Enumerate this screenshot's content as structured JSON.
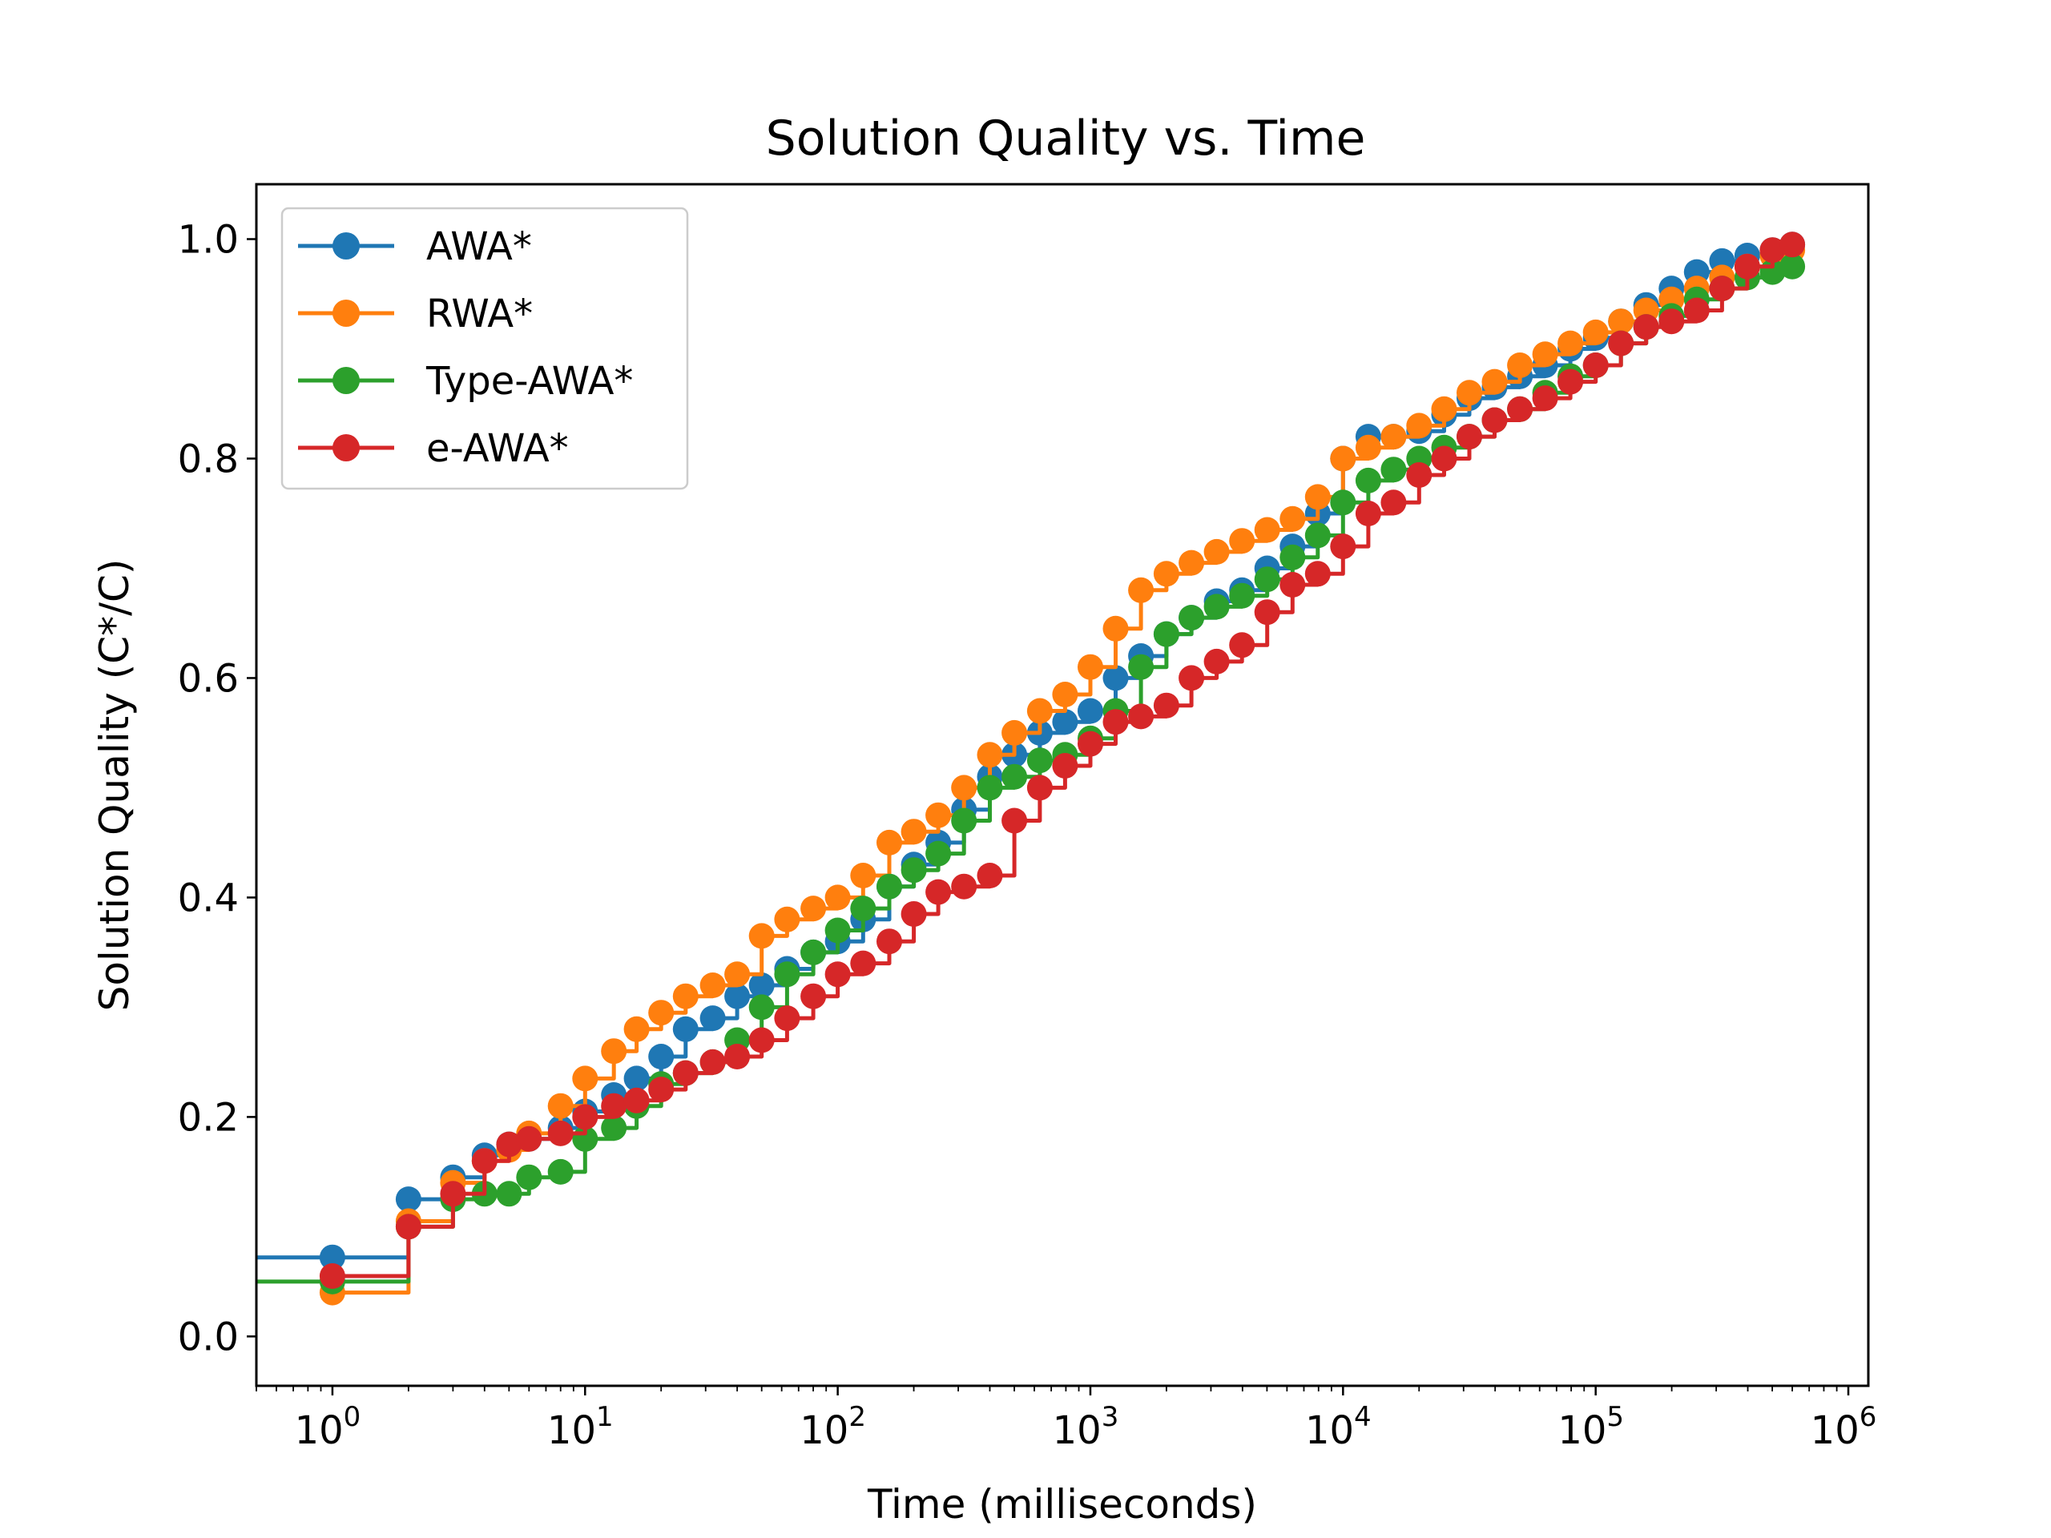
{
  "chart_data": {
    "type": "line",
    "title": "Solution Quality vs. Time",
    "xlabel": "Time (milliseconds)",
    "ylabel": "Solution Quality (C*/C)",
    "x_scale": "log",
    "xlim": [
      0.5,
      1200000
    ],
    "ylim": [
      -0.045,
      1.05
    ],
    "xticks": [
      {
        "value": 1,
        "base": "10",
        "exp": "0"
      },
      {
        "value": 10,
        "base": "10",
        "exp": "1"
      },
      {
        "value": 100,
        "base": "10",
        "exp": "2"
      },
      {
        "value": 1000,
        "base": "10",
        "exp": "3"
      },
      {
        "value": 10000,
        "base": "10",
        "exp": "4"
      },
      {
        "value": 100000,
        "base": "10",
        "exp": "5"
      },
      {
        "value": 1000000,
        "base": "10",
        "exp": "6"
      }
    ],
    "yticks": [
      {
        "value": 0.0,
        "label": "0.0"
      },
      {
        "value": 0.2,
        "label": "0.2"
      },
      {
        "value": 0.4,
        "label": "0.4"
      },
      {
        "value": 0.6,
        "label": "0.6"
      },
      {
        "value": 0.8,
        "label": "0.8"
      },
      {
        "value": 1.0,
        "label": "1.0"
      }
    ],
    "grid": false,
    "legend_position": "upper-left",
    "series": [
      {
        "name": "AWA*",
        "color": "#1f77b4",
        "x": [
          0.5,
          1,
          2,
          3,
          4,
          5,
          6,
          8,
          10,
          13,
          16,
          20,
          25,
          32,
          40,
          50,
          63,
          80,
          100,
          126,
          160,
          200,
          250,
          316,
          400,
          500,
          631,
          794,
          1000,
          1259,
          1585,
          2000,
          2512,
          3162,
          3981,
          5012,
          6310,
          7943,
          10000,
          12589,
          15849,
          20000,
          25119,
          31623,
          39811,
          50119,
          63096,
          79433,
          100000,
          125893,
          158489,
          199526,
          251189,
          316228,
          398107,
          501187,
          600000
        ],
        "y": [
          0.072,
          0.072,
          0.125,
          0.145,
          0.165,
          0.175,
          0.18,
          0.19,
          0.205,
          0.22,
          0.235,
          0.255,
          0.28,
          0.29,
          0.31,
          0.32,
          0.335,
          0.35,
          0.36,
          0.38,
          0.41,
          0.43,
          0.45,
          0.48,
          0.51,
          0.53,
          0.55,
          0.56,
          0.57,
          0.6,
          0.62,
          0.64,
          0.655,
          0.67,
          0.68,
          0.7,
          0.72,
          0.75,
          0.8,
          0.82,
          0.82,
          0.825,
          0.84,
          0.855,
          0.865,
          0.875,
          0.885,
          0.9,
          0.91,
          0.925,
          0.94,
          0.955,
          0.97,
          0.98,
          0.985,
          0.99,
          0.995
        ]
      },
      {
        "name": "RWA*",
        "color": "#ff7f0e",
        "x": [
          1,
          2,
          3,
          4,
          5,
          6,
          8,
          10,
          13,
          16,
          20,
          25,
          32,
          40,
          50,
          63,
          80,
          100,
          126,
          160,
          200,
          250,
          316,
          400,
          500,
          631,
          794,
          1000,
          1259,
          1585,
          2000,
          2512,
          3162,
          3981,
          5012,
          6310,
          7943,
          10000,
          12589,
          15849,
          20000,
          25119,
          31623,
          39811,
          50119,
          63096,
          79433,
          100000,
          125893,
          158489,
          199526,
          251189,
          316228,
          398107,
          501187,
          600000
        ],
        "y": [
          0.04,
          0.105,
          0.14,
          0.16,
          0.17,
          0.185,
          0.21,
          0.235,
          0.26,
          0.28,
          0.295,
          0.31,
          0.32,
          0.33,
          0.365,
          0.38,
          0.39,
          0.4,
          0.42,
          0.45,
          0.46,
          0.475,
          0.5,
          0.53,
          0.55,
          0.57,
          0.585,
          0.61,
          0.645,
          0.68,
          0.695,
          0.705,
          0.715,
          0.725,
          0.735,
          0.745,
          0.765,
          0.8,
          0.81,
          0.82,
          0.83,
          0.845,
          0.86,
          0.87,
          0.885,
          0.895,
          0.905,
          0.915,
          0.925,
          0.935,
          0.945,
          0.955,
          0.965,
          0.975,
          0.985,
          0.99
        ]
      },
      {
        "name": "Type-AWA*",
        "color": "#2ca02c",
        "x": [
          0.5,
          1,
          2,
          3,
          4,
          5,
          6,
          8,
          10,
          13,
          16,
          20,
          25,
          32,
          40,
          50,
          63,
          80,
          100,
          126,
          160,
          200,
          250,
          316,
          400,
          500,
          631,
          794,
          1000,
          1259,
          1585,
          2000,
          2512,
          3162,
          3981,
          5012,
          6310,
          7943,
          10000,
          12589,
          15849,
          20000,
          25119,
          31623,
          39811,
          50119,
          63096,
          79433,
          100000,
          125893,
          158489,
          199526,
          251189,
          316228,
          398107,
          501187,
          600000
        ],
        "y": [
          0.05,
          0.05,
          0.1,
          0.125,
          0.13,
          0.13,
          0.145,
          0.15,
          0.18,
          0.19,
          0.21,
          0.23,
          0.24,
          0.25,
          0.27,
          0.3,
          0.33,
          0.35,
          0.37,
          0.39,
          0.41,
          0.425,
          0.44,
          0.47,
          0.5,
          0.51,
          0.525,
          0.53,
          0.545,
          0.57,
          0.61,
          0.64,
          0.655,
          0.665,
          0.675,
          0.69,
          0.71,
          0.73,
          0.76,
          0.78,
          0.79,
          0.8,
          0.81,
          0.82,
          0.835,
          0.845,
          0.86,
          0.875,
          0.885,
          0.905,
          0.92,
          0.93,
          0.945,
          0.955,
          0.965,
          0.97,
          0.975
        ]
      },
      {
        "name": "e-AWA*",
        "color": "#d62728",
        "x": [
          1,
          2,
          3,
          4,
          5,
          6,
          8,
          10,
          13,
          16,
          20,
          25,
          32,
          40,
          50,
          63,
          80,
          100,
          126,
          160,
          200,
          250,
          316,
          400,
          500,
          631,
          794,
          1000,
          1259,
          1585,
          2000,
          2512,
          3162,
          3981,
          5012,
          6310,
          7943,
          10000,
          12589,
          15849,
          20000,
          25119,
          31623,
          39811,
          50119,
          63096,
          79433,
          100000,
          125893,
          158489,
          199526,
          251189,
          316228,
          398107,
          501187,
          600000
        ],
        "y": [
          0.055,
          0.1,
          0.13,
          0.16,
          0.175,
          0.18,
          0.185,
          0.2,
          0.21,
          0.215,
          0.225,
          0.24,
          0.25,
          0.255,
          0.27,
          0.29,
          0.31,
          0.33,
          0.34,
          0.36,
          0.385,
          0.405,
          0.41,
          0.42,
          0.47,
          0.5,
          0.52,
          0.54,
          0.56,
          0.565,
          0.575,
          0.6,
          0.615,
          0.63,
          0.66,
          0.685,
          0.695,
          0.72,
          0.75,
          0.76,
          0.785,
          0.8,
          0.82,
          0.835,
          0.845,
          0.855,
          0.87,
          0.885,
          0.905,
          0.92,
          0.925,
          0.935,
          0.955,
          0.975,
          0.99,
          0.995
        ]
      }
    ]
  }
}
